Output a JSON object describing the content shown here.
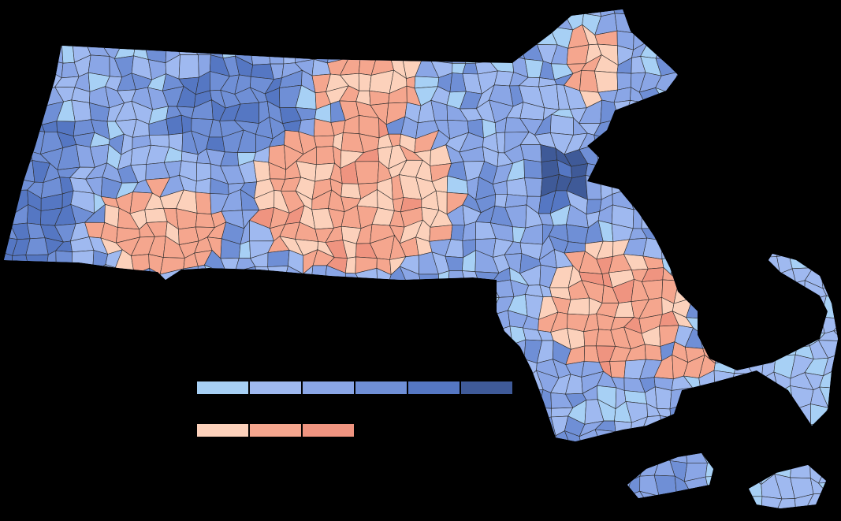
{
  "map": {
    "region": "Massachusetts",
    "subdivision": "municipalities",
    "background_color": "#000000",
    "border_color": "#2b2b2b"
  },
  "legend": {
    "blue_scale": [
      "#a7d0f5",
      "#9fb9f0",
      "#8aa6e6",
      "#6f8fd6",
      "#5577c3",
      "#3f5a98"
    ],
    "red_scale": [
      "#fcd1bb",
      "#f5a68e",
      "#ef9480"
    ]
  }
}
